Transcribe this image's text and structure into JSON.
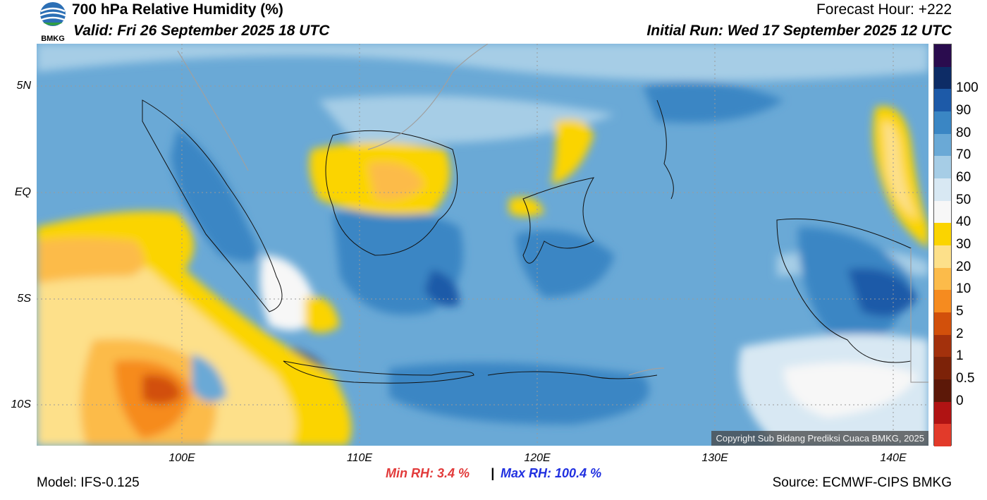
{
  "header": {
    "title": "700 hPa Relative Humidity (%)",
    "forecast_hour": "Forecast Hour: +222",
    "valid": "Valid: Fri 26 September 2025 18 UTC",
    "initial_run": "Initial Run: Wed 17 September 2025 12 UTC",
    "logo_text": "BMKG"
  },
  "map": {
    "lat_labels": [
      "5N",
      "EQ",
      "5S",
      "10S"
    ],
    "lon_labels": [
      "100E",
      "110E",
      "120E",
      "130E",
      "140E"
    ],
    "copyright": "Copyright Sub Bidang Prediksi Cuaca BMKG, 2025"
  },
  "colorbar": {
    "labels": [
      "100",
      "90",
      "80",
      "70",
      "60",
      "50",
      "40",
      "30",
      "20",
      "10",
      "5",
      "2",
      "1",
      "0.5",
      "0"
    ],
    "colors": [
      "#2a0c4e",
      "#0d2c66",
      "#1d5aa8",
      "#3a86c4",
      "#6aa9d6",
      "#a6cde6",
      "#d8e8f3",
      "#f7f7f7",
      "#fbd400",
      "#fde08a",
      "#fcbb4a",
      "#f68b1f",
      "#d2500b",
      "#a3310c",
      "#7c2208",
      "#5c1808",
      "#b01313",
      "#e23a2a"
    ]
  },
  "stats": {
    "min_label": "Min RH:",
    "min_value": "3.4 %",
    "sep": "|",
    "max_label": "Max RH:",
    "max_value": "100.4 %",
    "min_color": "#e23a3a",
    "max_color": "#2030e0"
  },
  "footer": {
    "model": "Model: IFS-0.125",
    "source": "Source: ECMWF-CIPS BMKG"
  }
}
